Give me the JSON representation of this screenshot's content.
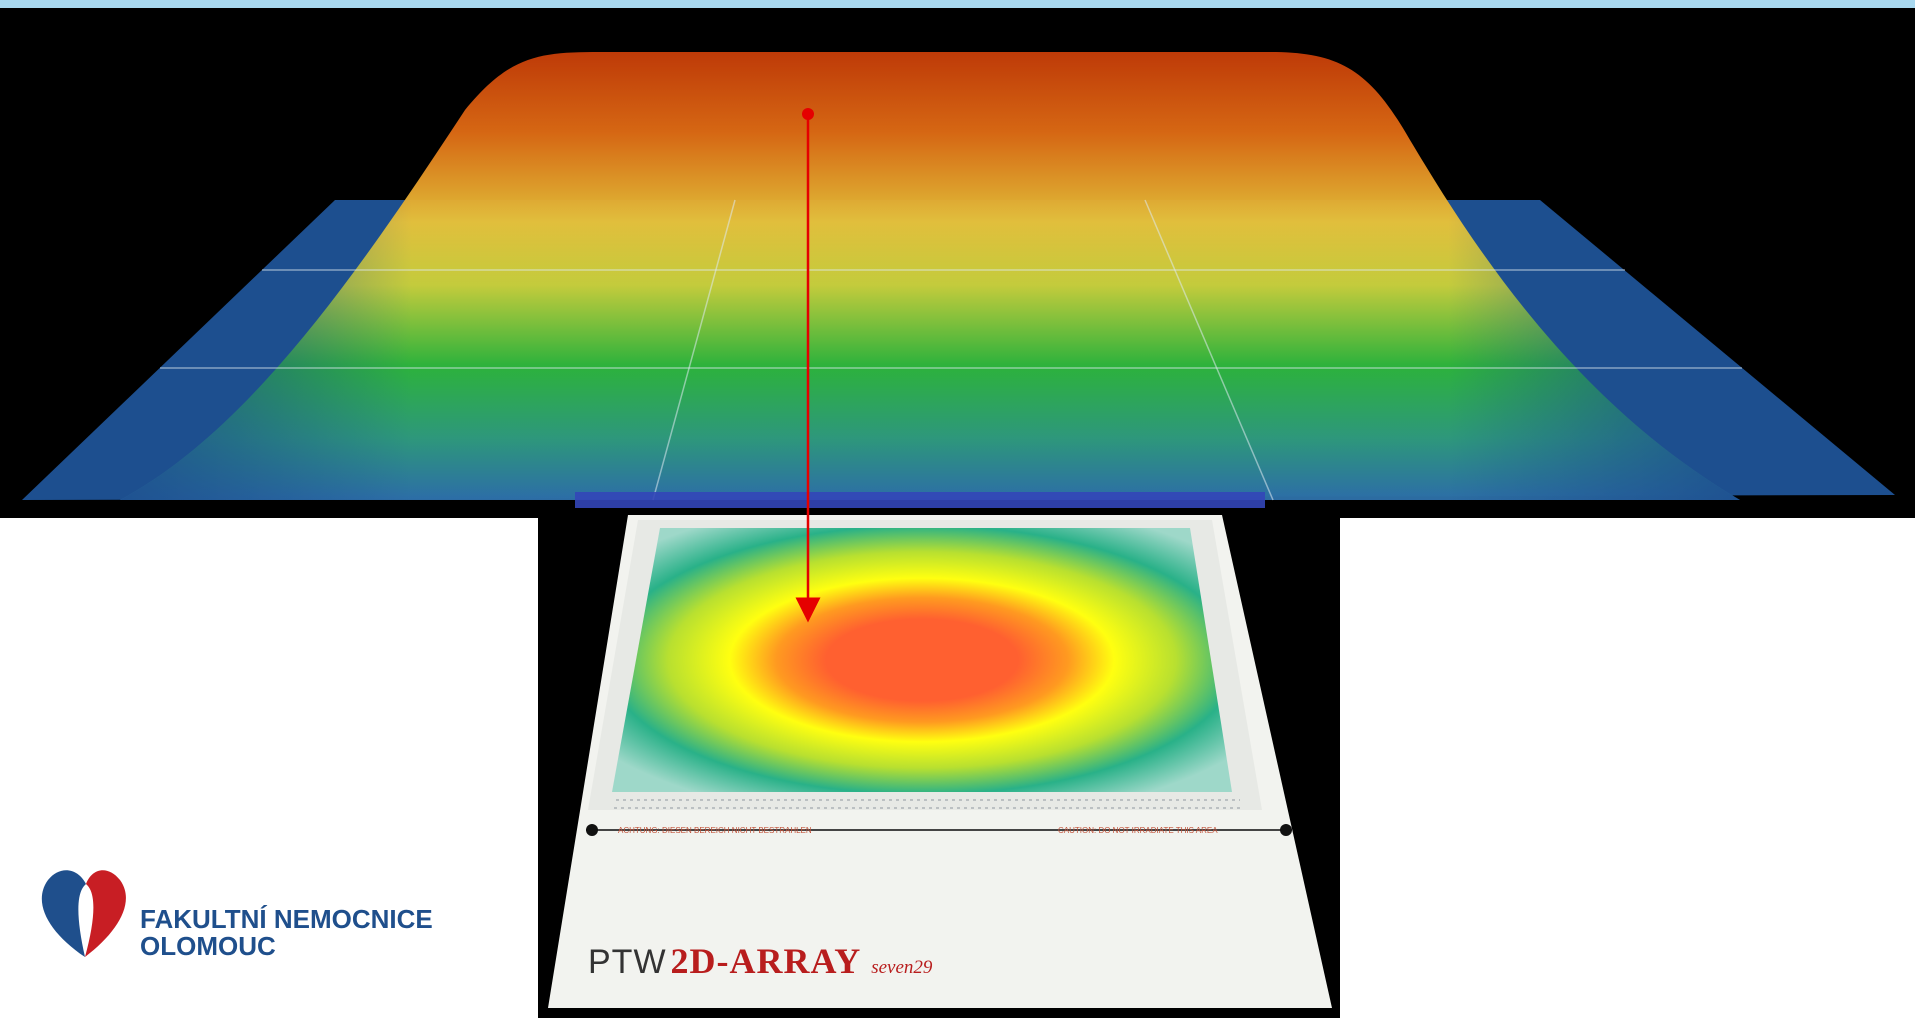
{
  "logo": {
    "line1": "FAKULTNÍ NEMOCNICE",
    "line2": "OLOMOUC"
  },
  "device": {
    "brand": "PTW",
    "model": "2D-ARRAY",
    "submodel": "seven29",
    "warning_de": "ACHTUNG: DIESEN BEREICH NICHT BESTRAHLEN",
    "warning_en": "CAUTION: DO NOT IRRADIATE THIS AREA"
  },
  "colors": {
    "plane": "#1d4f8f",
    "dose_high": "#c43c08",
    "dose_mid": "#e7cf39",
    "dose_low": "#2db539",
    "arrow": "#e50000",
    "logo_blue": "#1f4f8c",
    "logo_red": "#c81e24",
    "label_red": "#b81d1d"
  }
}
